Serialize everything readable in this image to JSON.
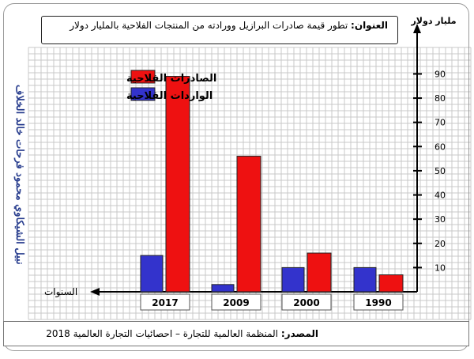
{
  "page": {
    "title_label": "العنوان:",
    "title_text": "تطور قيمة صادرات البرازيل وورادته من المنتجات الفلاحية بالمليار دولار",
    "source_label": "المصدر:",
    "source_text": "المنظمة العالمية للتجارة – احصائيات التجارة العالمية 2018",
    "side_credit": "نبيل الشيكاوي محمود فرحات خالد الخلاف"
  },
  "chart_data": {
    "type": "bar",
    "title": "تطور قيمة صادرات البرازيل وورادته من المنتجات الفلاحية بالمليار دولار",
    "categories": [
      "1990",
      "2000",
      "2009",
      "2017"
    ],
    "series": [
      {
        "name": "الصادرات الفلاحية",
        "color": "#ee1111",
        "values": [
          7,
          16,
          56,
          89
        ]
      },
      {
        "name": "الواردات الفلاحية",
        "color": "#3333cc",
        "values": [
          10,
          10,
          3,
          15
        ]
      }
    ],
    "ylabel": "مليار دولار",
    "xlabel": "السنوات",
    "yticks": [
      10,
      20,
      30,
      40,
      50,
      60,
      70,
      80,
      90
    ],
    "ylim": [
      0,
      95
    ],
    "grid": true,
    "legend_position": "top-left",
    "axis_side": "right"
  }
}
